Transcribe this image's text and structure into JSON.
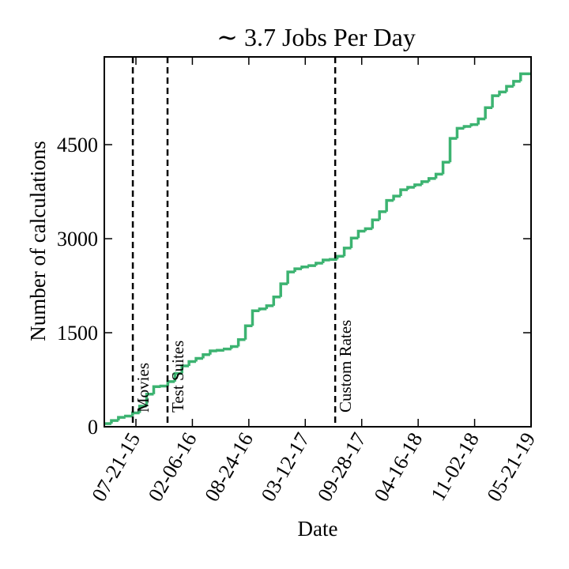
{
  "chart_data": {
    "type": "step",
    "title": "∼ 3.7 Jobs Per Day",
    "xlabel": "Date",
    "ylabel": "Number of calculations",
    "x": [
      "03-31-15",
      "04-25-15",
      "05-20-15",
      "06-14-15",
      "07-09-15",
      "08-03-15",
      "08-28-15",
      "09-22-15",
      "10-17-15",
      "11-11-15",
      "12-06-15",
      "12-31-15",
      "01-25-16",
      "02-19-16",
      "03-15-16",
      "04-09-16",
      "05-04-16",
      "05-29-16",
      "06-23-16",
      "07-18-16",
      "08-12-16",
      "09-06-16",
      "10-01-16",
      "10-26-16",
      "11-20-16",
      "12-15-16",
      "01-09-17",
      "02-03-17",
      "02-28-17",
      "03-25-17",
      "04-19-17",
      "05-14-17",
      "06-08-17",
      "07-03-17",
      "07-28-17",
      "08-22-17",
      "09-16-17",
      "10-11-17",
      "11-05-17",
      "11-30-17",
      "12-25-17",
      "01-19-18",
      "02-13-18",
      "03-10-18",
      "04-04-18",
      "04-29-18",
      "05-24-18",
      "06-18-18",
      "07-13-18",
      "08-07-18",
      "09-01-18",
      "09-26-18",
      "10-21-18",
      "11-15-18",
      "12-10-18",
      "01-04-19",
      "01-29-19",
      "02-23-19",
      "03-20-19",
      "04-14-19"
    ],
    "series": [
      {
        "color": "#3cb371",
        "values": [
          50,
          100,
          150,
          170,
          220,
          330,
          520,
          640,
          650,
          720,
          850,
          970,
          1040,
          1090,
          1150,
          1210,
          1220,
          1240,
          1280,
          1390,
          1610,
          1850,
          1880,
          1930,
          2070,
          2280,
          2470,
          2520,
          2550,
          2570,
          2610,
          2660,
          2670,
          2720,
          2850,
          3010,
          3120,
          3160,
          3300,
          3430,
          3610,
          3680,
          3780,
          3820,
          3860,
          3910,
          3960,
          4030,
          4220,
          4600,
          4760,
          4790,
          4820,
          4910,
          5090,
          5280,
          5340,
          5430,
          5510,
          5630
        ]
      }
    ],
    "xlim": [
      "03-31-15",
      "05-21-19"
    ],
    "xticks": [
      "07-21-15",
      "02-06-16",
      "08-24-16",
      "03-12-17",
      "09-28-17",
      "04-16-18",
      "11-02-18",
      "05-21-19"
    ],
    "ylim": [
      0,
      5900
    ],
    "yticks": [
      0,
      1500,
      3000,
      4500
    ],
    "annotations": [
      {
        "x": "07-10-15",
        "label": "Movies"
      },
      {
        "x": "11-10-15",
        "label": "Test Suites"
      },
      {
        "x": "06-26-17",
        "label": "Custom Rates"
      }
    ]
  }
}
